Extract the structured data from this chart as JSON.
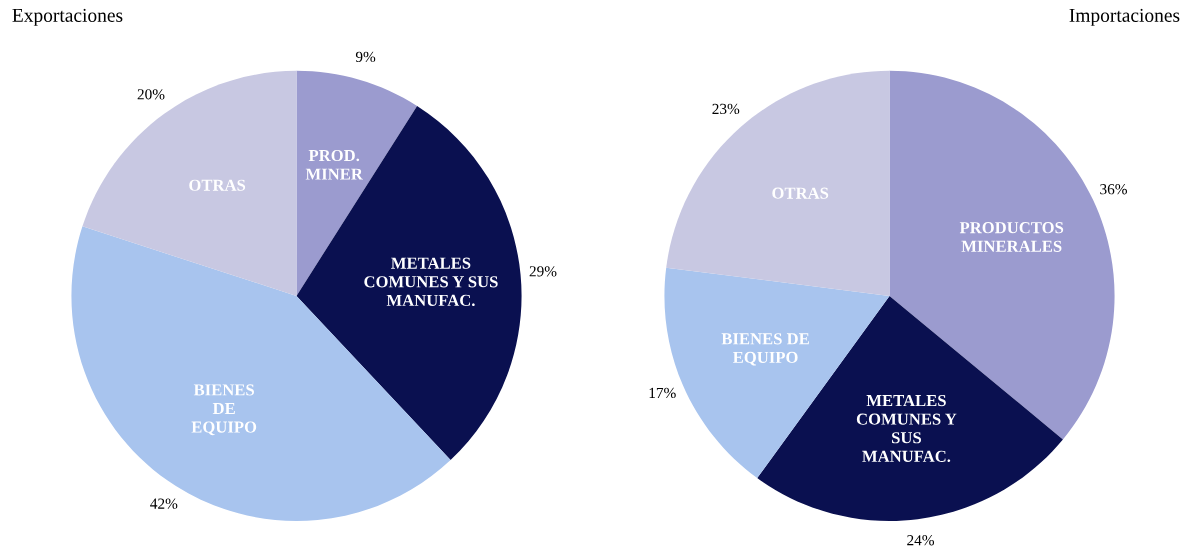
{
  "chart_data": [
    {
      "type": "pie",
      "title": "Exportaciones",
      "categories": [
        "PROD.\nMINER",
        "METALES\nCOMUNES Y SUS\nMANUFAC.",
        "BIENES\nDE\nEQUIPO",
        "OTRAS"
      ],
      "values": [
        9,
        29,
        42,
        20
      ],
      "colors": [
        "#9b9bcf",
        "#0a1050",
        "#a8c4ee",
        "#c8c8e2"
      ],
      "value_labels": [
        "9%",
        "29%",
        "42%",
        "20%"
      ]
    },
    {
      "type": "pie",
      "title": "Importaciones",
      "categories": [
        "PRODUCTOS\nMINERALES",
        "METALES\nCOMUNES Y\nSUS\nMANUFAC.",
        "BIENES DE\nEQUIPO",
        "OTRAS"
      ],
      "values": [
        36,
        24,
        17,
        23
      ],
      "colors": [
        "#9b9bcf",
        "#0a1050",
        "#a8c4ee",
        "#c8c8e2"
      ],
      "value_labels": [
        "36%",
        "24%",
        "17%",
        "23%"
      ]
    }
  ]
}
